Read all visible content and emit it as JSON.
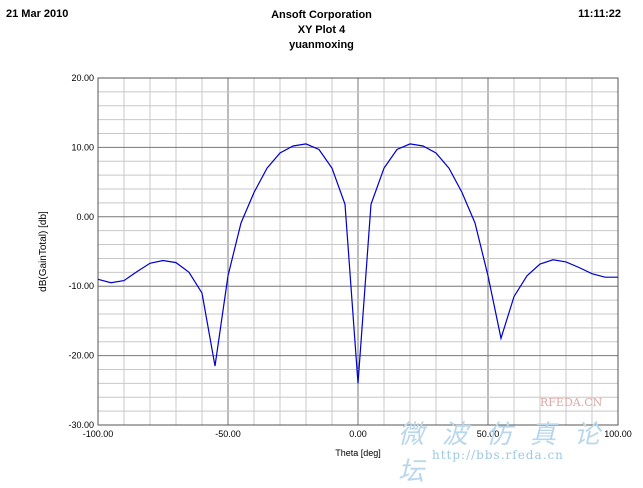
{
  "header": {
    "date": "21 Mar 2010",
    "time": "11:11:22",
    "company": "Ansoft Corporation",
    "plot_name": "XY Plot 4",
    "design": "yuanmoxing"
  },
  "watermark": {
    "chinese": "微波仿真论坛",
    "url": "http://bbs.rfeda.cn",
    "brand": "RFEDA.CN"
  },
  "chart_data": {
    "type": "line",
    "xlabel": "Theta [deg]",
    "ylabel": "dB(GainTotal) [db]",
    "xlim": [
      -100,
      100
    ],
    "ylim": [
      -30,
      20
    ],
    "x_ticks": [
      -100,
      -50,
      0,
      50,
      100
    ],
    "y_ticks": [
      -30,
      -20,
      -10,
      0,
      10,
      20
    ],
    "x_tick_labels": [
      "-100.00",
      "-50.00",
      "0.00",
      "50.00",
      "100.00"
    ],
    "y_tick_labels": [
      "-30.00",
      "-20.00",
      "-10.00",
      "0.00",
      "10.00",
      "20.00"
    ],
    "grid": true,
    "line_color": "#0000cc",
    "series": [
      {
        "x": [
          -100,
          -95,
          -90,
          -85,
          -80,
          -75,
          -70,
          -65,
          -60,
          -55,
          -50,
          -45,
          -40,
          -35,
          -30,
          -25,
          -20,
          -15,
          -10,
          -5,
          0,
          5,
          10,
          15,
          20,
          25,
          30,
          35,
          40,
          45,
          50,
          55,
          60,
          65,
          70,
          75,
          80,
          85,
          90,
          95,
          100
        ],
        "y": [
          -9.0,
          -9.5,
          -9.2,
          -7.9,
          -6.7,
          -6.3,
          -6.6,
          -8.0,
          -11.0,
          -21.5,
          -8.5,
          -0.9,
          3.5,
          7.0,
          9.2,
          10.2,
          10.5,
          9.7,
          7.0,
          1.8,
          -24.0,
          1.8,
          7.0,
          9.7,
          10.5,
          10.2,
          9.2,
          7.0,
          3.5,
          -0.9,
          -8.5,
          -17.5,
          -11.5,
          -8.5,
          -6.8,
          -6.2,
          -6.5,
          -7.3,
          -8.2,
          -8.7,
          -8.7
        ]
      }
    ]
  }
}
